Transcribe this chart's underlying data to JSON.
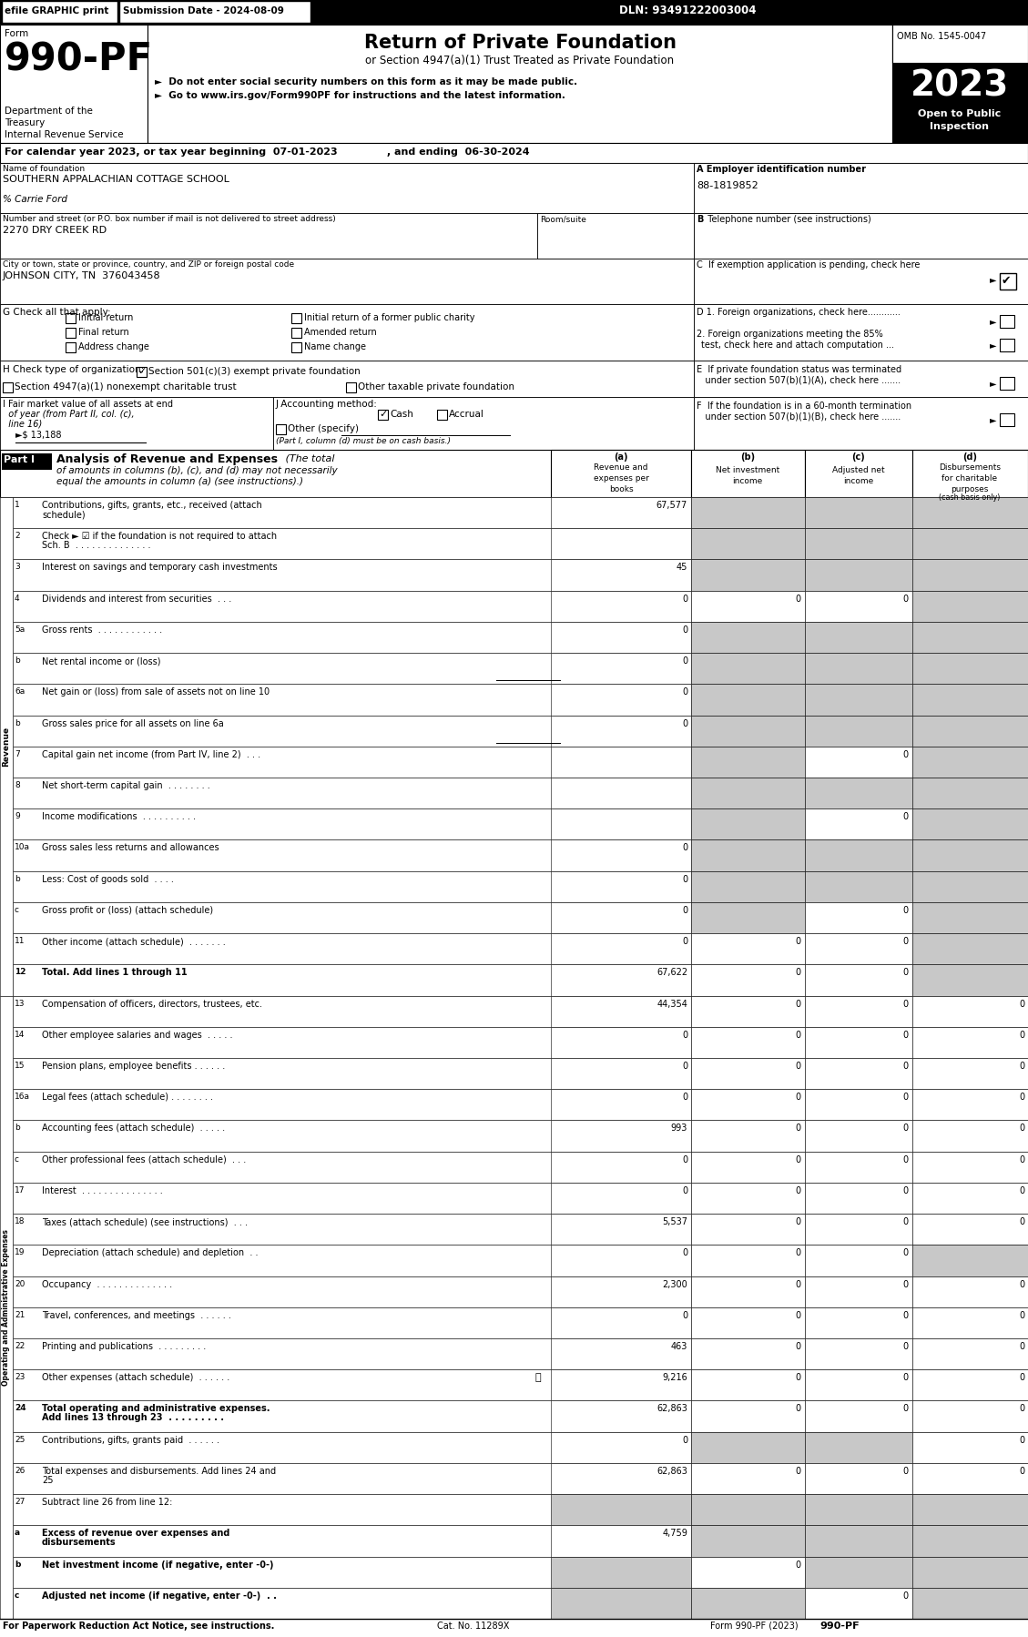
{
  "top_bar": {
    "efile": "efile GRAPHIC print",
    "submission": "Submission Date - 2024-08-09",
    "dln": "DLN: 93491222003004"
  },
  "form_header": {
    "form_label": "Form",
    "form_number": "990-PF",
    "dept1": "Department of the",
    "dept2": "Treasury",
    "dept3": "Internal Revenue Service",
    "title": "Return of Private Foundation",
    "subtitle": "or Section 4947(a)(1) Trust Treated as Private Foundation",
    "bullet1": "►  Do not enter social security numbers on this form as it may be made public.",
    "bullet2": "►  Go to www.irs.gov/Form990PF for instructions and the latest information.",
    "omb": "OMB No. 1545-0047",
    "year": "2023",
    "open": "Open to Public",
    "inspection": "Inspection"
  },
  "calendar_line": "For calendar year 2023, or tax year beginning  07-01-2023              , and ending  06-30-2024",
  "fields": {
    "name_label": "Name of foundation",
    "name_value": "SOUTHERN APPALACHIAN COTTAGE SCHOOL",
    "care_of": "% Carrie Ford",
    "ein_label": "A Employer identification number",
    "ein_value": "88-1819852",
    "address_label": "Number and street (or P.O. box number if mail is not delivered to street address)",
    "address_value": "2270 DRY CREEK RD",
    "room_label": "Room/suite",
    "phone_label": "B Telephone number (see instructions)",
    "city_label": "City or town, state or province, country, and ZIP or foreign postal code",
    "city_value": "JOHNSON CITY, TN  376043458",
    "g_options_left": [
      "Initial return",
      "Final return",
      "Address change"
    ],
    "g_options_right": [
      "Initial return of a former public charity",
      "Amended return",
      "Name change"
    ],
    "h_opt1": "Section 501(c)(3) exempt private foundation",
    "h_opt2": "Section 4947(a)(1) nonexempt charitable trust",
    "h_opt3": "Other taxable private foundation",
    "i_value": "13,188",
    "j_note": "(Part I, column (d) must be on cash basis.)"
  },
  "part1_rows": [
    {
      "num": "1",
      "label": "Contributions, gifts, grants, etc., received (attach\nschedule)",
      "a": "67,577",
      "b": "",
      "c": "",
      "d": "",
      "b_gray": true,
      "c_gray": true,
      "d_gray": true
    },
    {
      "num": "2",
      "label": "Check ► ☑ if the foundation is not required to attach\nSch. B  . . . . . . . . . . . . . .",
      "a": "",
      "b": "",
      "c": "",
      "d": "",
      "b_gray": true,
      "c_gray": true,
      "d_gray": true
    },
    {
      "num": "3",
      "label": "Interest on savings and temporary cash investments",
      "a": "45",
      "b": "",
      "c": "",
      "d": "",
      "b_gray": true,
      "c_gray": true,
      "d_gray": true
    },
    {
      "num": "4",
      "label": "Dividends and interest from securities  . . .",
      "a": "0",
      "b": "0",
      "c": "0",
      "d": "",
      "b_gray": false,
      "c_gray": false,
      "d_gray": true
    },
    {
      "num": "5a",
      "label": "Gross rents  . . . . . . . . . . . .",
      "a": "0",
      "b": "",
      "c": "",
      "d": "",
      "b_gray": true,
      "c_gray": true,
      "d_gray": true
    },
    {
      "num": "b",
      "label": "Net rental income or (loss)",
      "a": "0",
      "b": "",
      "c": "",
      "d": "",
      "b_gray": true,
      "c_gray": true,
      "d_gray": true,
      "underline_a": true
    },
    {
      "num": "6a",
      "label": "Net gain or (loss) from sale of assets not on line 10",
      "a": "0",
      "b": "",
      "c": "",
      "d": "",
      "b_gray": true,
      "c_gray": true,
      "d_gray": true
    },
    {
      "num": "b",
      "label": "Gross sales price for all assets on line 6a",
      "a": "0",
      "b": "",
      "c": "",
      "d": "",
      "b_gray": true,
      "c_gray": true,
      "d_gray": true,
      "underline_a": true
    },
    {
      "num": "7",
      "label": "Capital gain net income (from Part IV, line 2)  . . .",
      "a": "",
      "b": "",
      "c": "0",
      "d": "",
      "b_gray": true,
      "c_gray": false,
      "d_gray": true
    },
    {
      "num": "8",
      "label": "Net short-term capital gain  . . . . . . . .",
      "a": "",
      "b": "",
      "c": "",
      "d": "",
      "b_gray": true,
      "c_gray": true,
      "d_gray": true
    },
    {
      "num": "9",
      "label": "Income modifications  . . . . . . . . . .",
      "a": "",
      "b": "",
      "c": "0",
      "d": "",
      "b_gray": true,
      "c_gray": false,
      "d_gray": true
    },
    {
      "num": "10a",
      "label": "Gross sales less returns and allowances",
      "a": "0",
      "b": "",
      "c": "",
      "d": "",
      "b_gray": true,
      "c_gray": true,
      "d_gray": true
    },
    {
      "num": "b",
      "label": "Less: Cost of goods sold  . . . .",
      "a": "0",
      "b": "",
      "c": "",
      "d": "",
      "b_gray": true,
      "c_gray": true,
      "d_gray": true
    },
    {
      "num": "c",
      "label": "Gross profit or (loss) (attach schedule)",
      "a": "0",
      "b": "",
      "c": "0",
      "d": "",
      "b_gray": true,
      "c_gray": false,
      "d_gray": true
    },
    {
      "num": "11",
      "label": "Other income (attach schedule)  . . . . . . .",
      "a": "0",
      "b": "0",
      "c": "0",
      "d": "",
      "b_gray": false,
      "c_gray": false,
      "d_gray": true
    },
    {
      "num": "12",
      "label": "Total. Add lines 1 through 11",
      "a": "67,622",
      "b": "0",
      "c": "0",
      "d": "",
      "b_gray": false,
      "c_gray": false,
      "d_gray": true,
      "bold_label": true,
      "bold_num": true
    },
    {
      "num": "13",
      "label": "Compensation of officers, directors, trustees, etc.",
      "a": "44,354",
      "b": "0",
      "c": "0",
      "d": "0",
      "b_gray": false,
      "c_gray": false,
      "d_gray": false
    },
    {
      "num": "14",
      "label": "Other employee salaries and wages  . . . . .",
      "a": "0",
      "b": "0",
      "c": "0",
      "d": "0",
      "b_gray": false,
      "c_gray": false,
      "d_gray": false
    },
    {
      "num": "15",
      "label": "Pension plans, employee benefits . . . . . .",
      "a": "0",
      "b": "0",
      "c": "0",
      "d": "0",
      "b_gray": false,
      "c_gray": false,
      "d_gray": false
    },
    {
      "num": "16a",
      "label": "Legal fees (attach schedule) . . . . . . . .",
      "a": "0",
      "b": "0",
      "c": "0",
      "d": "0",
      "b_gray": false,
      "c_gray": false,
      "d_gray": false
    },
    {
      "num": "b",
      "label": "Accounting fees (attach schedule)  . . . . .",
      "a": "993",
      "b": "0",
      "c": "0",
      "d": "0",
      "b_gray": false,
      "c_gray": false,
      "d_gray": false
    },
    {
      "num": "c",
      "label": "Other professional fees (attach schedule)  . . .",
      "a": "0",
      "b": "0",
      "c": "0",
      "d": "0",
      "b_gray": false,
      "c_gray": false,
      "d_gray": false
    },
    {
      "num": "17",
      "label": "Interest  . . . . . . . . . . . . . . .",
      "a": "0",
      "b": "0",
      "c": "0",
      "d": "0",
      "b_gray": false,
      "c_gray": false,
      "d_gray": false
    },
    {
      "num": "18",
      "label": "Taxes (attach schedule) (see instructions)  . . .",
      "a": "5,537",
      "b": "0",
      "c": "0",
      "d": "0",
      "b_gray": false,
      "c_gray": false,
      "d_gray": false
    },
    {
      "num": "19",
      "label": "Depreciation (attach schedule) and depletion  . .",
      "a": "0",
      "b": "0",
      "c": "0",
      "d": "",
      "b_gray": false,
      "c_gray": false,
      "d_gray": true
    },
    {
      "num": "20",
      "label": "Occupancy  . . . . . . . . . . . . . .",
      "a": "2,300",
      "b": "0",
      "c": "0",
      "d": "0",
      "b_gray": false,
      "c_gray": false,
      "d_gray": false
    },
    {
      "num": "21",
      "label": "Travel, conferences, and meetings  . . . . . .",
      "a": "0",
      "b": "0",
      "c": "0",
      "d": "0",
      "b_gray": false,
      "c_gray": false,
      "d_gray": false
    },
    {
      "num": "22",
      "label": "Printing and publications  . . . . . . . . .",
      "a": "463",
      "b": "0",
      "c": "0",
      "d": "0",
      "b_gray": false,
      "c_gray": false,
      "d_gray": false
    },
    {
      "num": "23",
      "label": "Other expenses (attach schedule)  . . . . . .",
      "a": "9,216",
      "b": "0",
      "c": "0",
      "d": "0",
      "b_gray": false,
      "c_gray": false,
      "d_gray": false,
      "has_icon": true
    },
    {
      "num": "24",
      "label": "Total operating and administrative expenses.\nAdd lines 13 through 23  . . . . . . . . .",
      "a": "62,863",
      "b": "0",
      "c": "0",
      "d": "0",
      "b_gray": false,
      "c_gray": false,
      "d_gray": false,
      "bold_label": true,
      "bold_num": true
    },
    {
      "num": "25",
      "label": "Contributions, gifts, grants paid  . . . . . .",
      "a": "0",
      "b": "",
      "c": "",
      "d": "0",
      "b_gray": true,
      "c_gray": true,
      "d_gray": false
    },
    {
      "num": "26",
      "label": "Total expenses and disbursements. Add lines 24 and\n25",
      "a": "62,863",
      "b": "0",
      "c": "0",
      "d": "0",
      "b_gray": false,
      "c_gray": false,
      "d_gray": false,
      "bold_label_partial": "Total expenses and disbursements."
    },
    {
      "num": "27",
      "label": "Subtract line 26 from line 12:",
      "a": "",
      "b": "",
      "c": "",
      "d": "",
      "b_gray": true,
      "c_gray": true,
      "d_gray": true,
      "a_gray": true
    },
    {
      "num": "a",
      "label": "Excess of revenue over expenses and\ndisbursements",
      "a": "4,759",
      "b": "",
      "c": "",
      "d": "",
      "b_gray": true,
      "c_gray": true,
      "d_gray": true,
      "bold_label": true,
      "bold_num": true
    },
    {
      "num": "b",
      "label": "Net investment income (if negative, enter -0-)",
      "a": "",
      "b": "0",
      "c": "",
      "d": "",
      "b_gray": false,
      "c_gray": true,
      "d_gray": true,
      "a_gray": true,
      "bold_label": true,
      "bold_num": true
    },
    {
      "num": "c",
      "label": "Adjusted net income (if negative, enter -0-)  . .",
      "a": "",
      "b": "",
      "c": "0",
      "d": "",
      "b_gray": true,
      "c_gray": false,
      "d_gray": true,
      "a_gray": true,
      "bold_label": true,
      "bold_num": true
    }
  ],
  "revenue_row_count": 16,
  "footer": "For Paperwork Reduction Act Notice, see instructions.",
  "footer_cat": "Cat. No. 11289X",
  "footer_form": "Form 990-PF (2023)"
}
